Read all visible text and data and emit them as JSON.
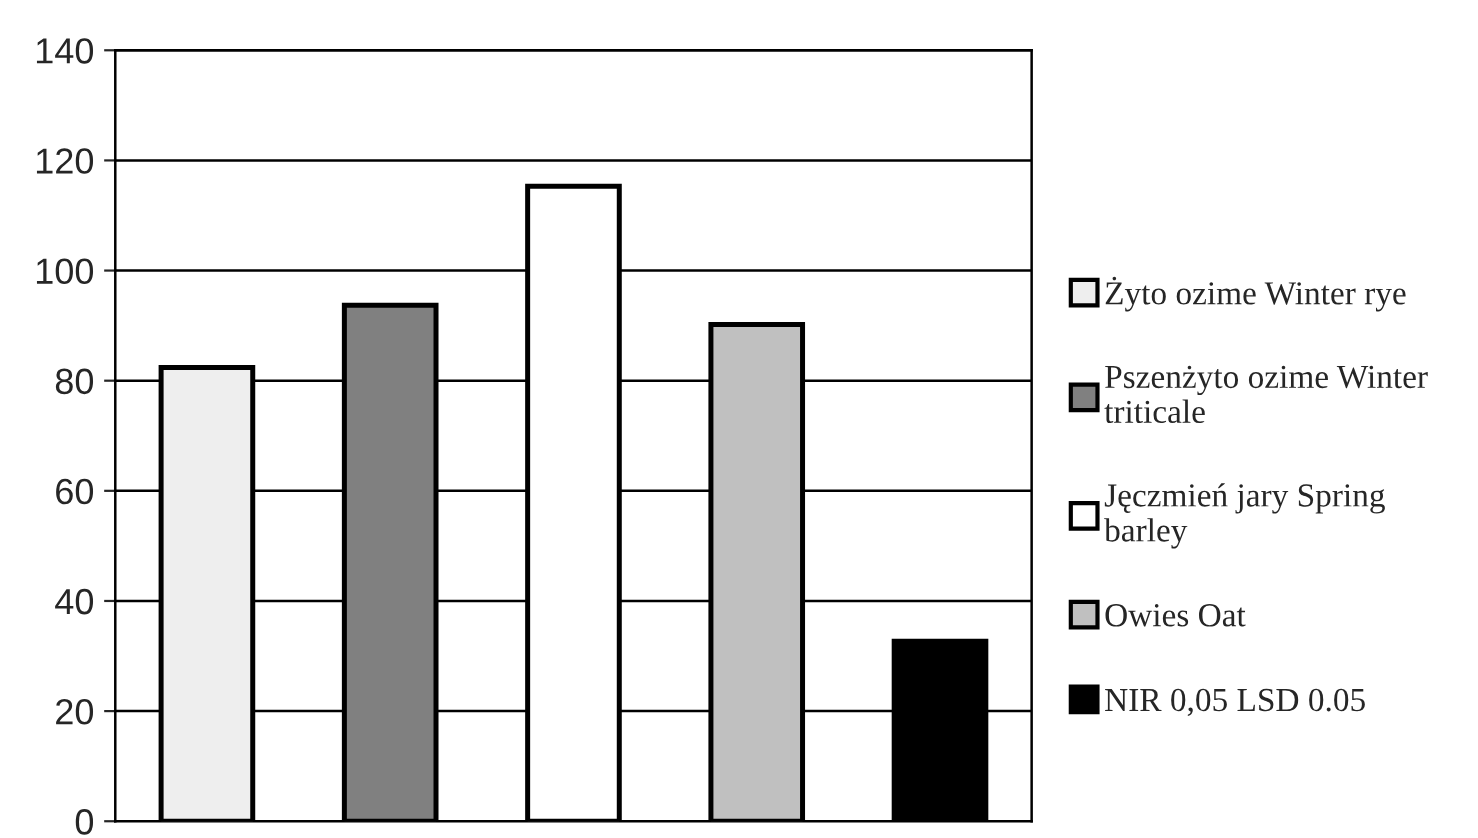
{
  "chart_data": {
    "type": "bar",
    "categories": [
      null,
      null,
      null,
      null,
      null
    ],
    "series": [
      {
        "name": "Żyto ozime Winter rye",
        "color": "#eeeeee",
        "values": [
          82.4,
          null,
          null,
          null,
          null
        ]
      },
      {
        "name": "Pszenżyto ozime Winter triticale",
        "color": "#808080",
        "values": [
          null,
          93.7,
          null,
          null,
          null
        ]
      },
      {
        "name": "Jęczmień jary Spring barley",
        "color": "#ffffff",
        "values": [
          null,
          null,
          115.3,
          null,
          null
        ]
      },
      {
        "name": "Owies Oat",
        "color": "#c0c0c0",
        "values": [
          null,
          null,
          null,
          90.2,
          null
        ]
      },
      {
        "name": "NIR 0,05 LSD 0.05",
        "color": "#000000",
        "values": [
          null,
          null,
          null,
          null,
          32.7
        ]
      }
    ],
    "ylim": [
      0,
      140
    ],
    "yticks": [
      0,
      20,
      40,
      60,
      80,
      100,
      120,
      140
    ],
    "grid": "y",
    "legend": "right"
  }
}
